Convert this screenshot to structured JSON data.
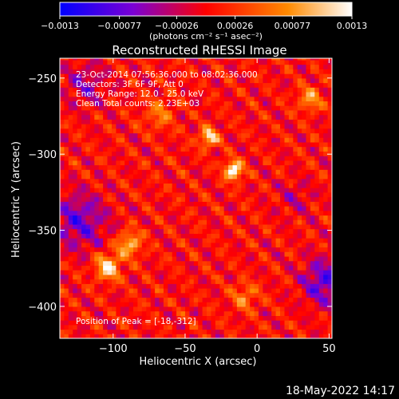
{
  "chart_data": {
    "type": "heatmap",
    "title": "Reconstructed RHESSI Image",
    "xlabel": "Heliocentric X (arcsec)",
    "ylabel": "Heliocentric Y (arcsec)",
    "xlim": [
      -137,
      52
    ],
    "ylim": [
      -421,
      -237
    ],
    "x_ticks": [
      -100,
      -50,
      0,
      50
    ],
    "x_tick_labels": [
      "−100",
      "−50",
      "0",
      "50"
    ],
    "y_ticks": [
      -250,
      -300,
      -350,
      -400
    ],
    "y_tick_labels": [
      "−250",
      "−300",
      "−350",
      "−400"
    ],
    "colorbar": {
      "min": -0.0013,
      "max": 0.0013,
      "ticks": [
        -0.0013,
        -0.00077,
        -0.00026,
        0.00026,
        0.00077,
        0.0013
      ],
      "tick_labels": [
        "−0.0013",
        "−0.00077",
        "−0.00026",
        "0.00026",
        "0.00077",
        "0.0013"
      ],
      "unit_label": "(photons cm⁻² s⁻¹ asec⁻²)",
      "stops": [
        "#0000ff",
        "#7a00d4",
        "#ff0000",
        "#ff8a00",
        "#ffffff"
      ]
    },
    "annotations": [
      "23-Oct-2014 07:56:36.000 to 08:02:36.000",
      "Detectors: 3F 6F 9F, Att 0",
      "Energy Range: 12.0 - 25.0 keV",
      "Clean     Total counts: 2.23E+03",
      "Position of Peak = [-18,-312]"
    ],
    "peak": {
      "x": -18,
      "y": -312
    },
    "grid": false
  },
  "footer": {
    "date": "18-May-2022 14:17"
  }
}
